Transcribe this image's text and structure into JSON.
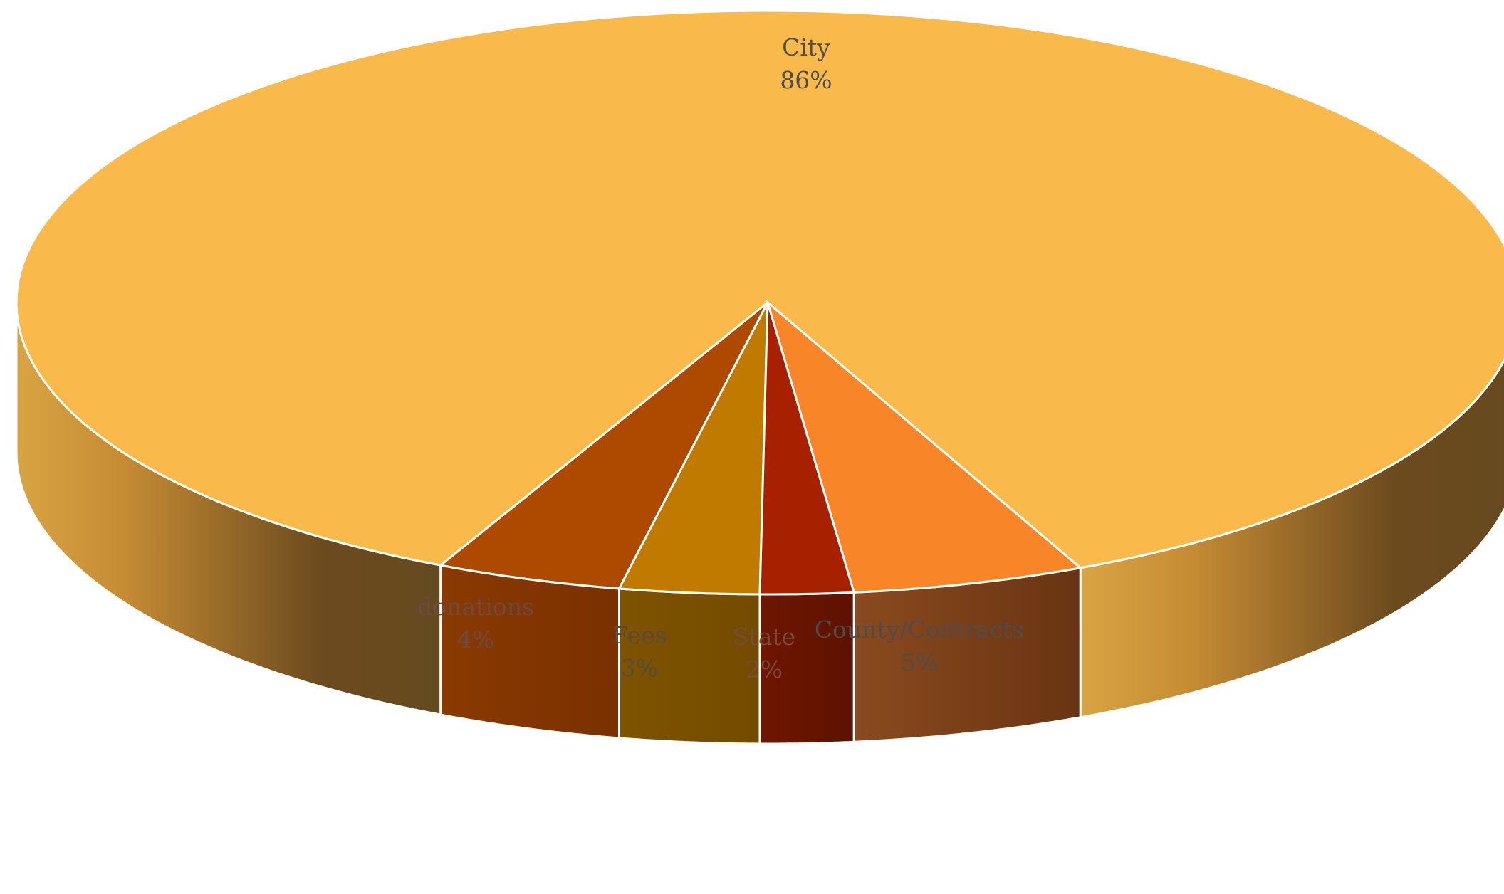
{
  "chart_data": {
    "type": "pie",
    "title": "",
    "slices": [
      {
        "label": "City",
        "value": 86,
        "value_label": "86%",
        "color": "#F9B94B",
        "side_color": "#D49A3C",
        "label_color": "#4d4d4d"
      },
      {
        "label": "donations",
        "value": 4,
        "value_label": "4%",
        "color": "#AD4A00",
        "side_color": "#853500",
        "label_color": "#6b4b45"
      },
      {
        "label": "Fees",
        "value": 3,
        "value_label": "3%",
        "color": "#C17A00",
        "side_color": "#7A4F00",
        "label_color": "#5a4a3a"
      },
      {
        "label": "State",
        "value": 2,
        "value_label": "2%",
        "color": "#A72100",
        "side_color": "#661400",
        "label_color": "#7a4a3a"
      },
      {
        "label": "County/Contracts",
        "value": 5,
        "value_label": "5%",
        "color": "#F98529",
        "side_color": "#7A3F12",
        "label_color": "#4d4d4d"
      }
    ],
    "legend": "none",
    "style": "3d-pie"
  }
}
